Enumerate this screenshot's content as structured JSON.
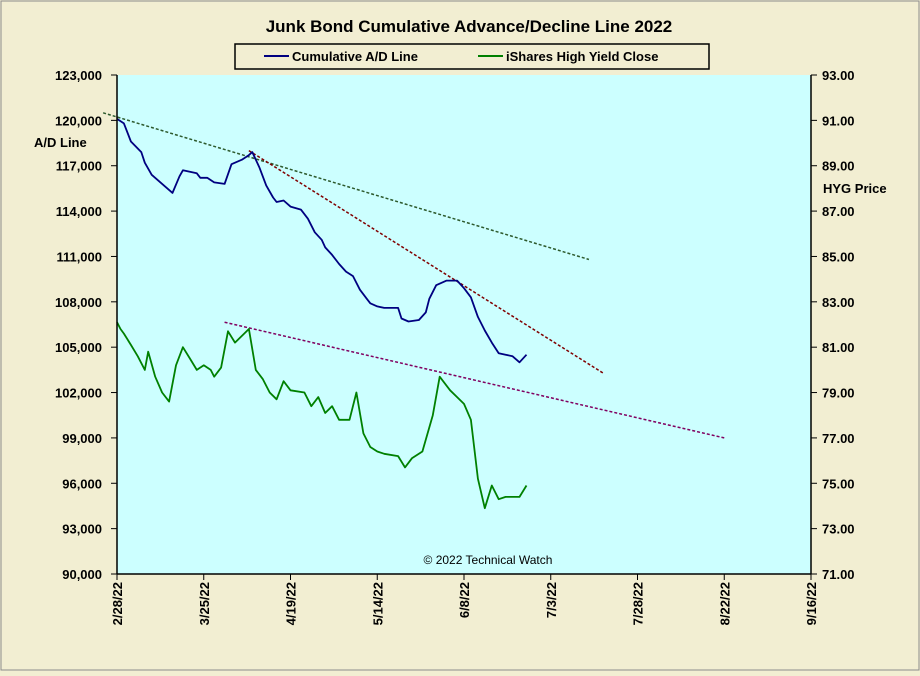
{
  "chart_data": {
    "type": "line",
    "title": "Junk Bond Cumulative  Advance/Decline  Line 2022",
    "copyright": "© 2022 Technical Watch",
    "left_axis": {
      "label": "A/D Line",
      "range": [
        90000,
        123000
      ],
      "ticks": [
        "123,000",
        "120,000",
        "117,000",
        "114,000",
        "111,000",
        "108,000",
        "105,000",
        "102,000",
        "99,000",
        "96,000",
        "93,000",
        "90,000"
      ]
    },
    "right_axis": {
      "label": "HYG Price",
      "range": [
        71,
        93
      ],
      "ticks": [
        "93.00",
        "91.00",
        "89.00",
        "87.00",
        "85.00",
        "83.00",
        "81.00",
        "79.00",
        "77.00",
        "75.00",
        "73.00",
        "71.00"
      ]
    },
    "x_axis": {
      "range": [
        "2022-02-28",
        "2022-09-16"
      ],
      "ticks": [
        "2/28/22",
        "3/25/22",
        "4/19/22",
        "5/14/22",
        "6/8/22",
        "7/3/22",
        "7/28/22",
        "8/22/22",
        "9/16/22"
      ]
    },
    "legend": {
      "placement": "top-center"
    },
    "grid": false,
    "plot_background": "#ccffff",
    "series": [
      {
        "name": "Cumulative A/D Line",
        "axis": "left",
        "color": "#000080",
        "points": [
          [
            "2022-02-28",
            120100
          ],
          [
            "2022-03-02",
            119800
          ],
          [
            "2022-03-04",
            118600
          ],
          [
            "2022-03-07",
            117900
          ],
          [
            "2022-03-08",
            117200
          ],
          [
            "2022-03-10",
            116400
          ],
          [
            "2022-03-14",
            115600
          ],
          [
            "2022-03-16",
            115200
          ],
          [
            "2022-03-18",
            116300
          ],
          [
            "2022-03-19",
            116700
          ],
          [
            "2022-03-23",
            116500
          ],
          [
            "2022-03-24",
            116200
          ],
          [
            "2022-03-26",
            116200
          ],
          [
            "2022-03-28",
            115900
          ],
          [
            "2022-03-31",
            115800
          ],
          [
            "2022-04-02",
            117100
          ],
          [
            "2022-04-05",
            117400
          ],
          [
            "2022-04-07",
            117700
          ],
          [
            "2022-04-08",
            117900
          ],
          [
            "2022-04-10",
            116900
          ],
          [
            "2022-04-12",
            115700
          ],
          [
            "2022-04-14",
            114900
          ],
          [
            "2022-04-15",
            114600
          ],
          [
            "2022-04-17",
            114700
          ],
          [
            "2022-04-19",
            114300
          ],
          [
            "2022-04-22",
            114100
          ],
          [
            "2022-04-24",
            113500
          ],
          [
            "2022-04-26",
            112600
          ],
          [
            "2022-04-28",
            112100
          ],
          [
            "2022-04-29",
            111600
          ],
          [
            "2022-05-01",
            111100
          ],
          [
            "2022-05-03",
            110500
          ],
          [
            "2022-05-05",
            110000
          ],
          [
            "2022-05-07",
            109700
          ],
          [
            "2022-05-09",
            108800
          ],
          [
            "2022-05-11",
            108200
          ],
          [
            "2022-05-12",
            107900
          ],
          [
            "2022-05-14",
            107700
          ],
          [
            "2022-05-16",
            107600
          ],
          [
            "2022-05-20",
            107600
          ],
          [
            "2022-05-21",
            106900
          ],
          [
            "2022-05-23",
            106700
          ],
          [
            "2022-05-26",
            106800
          ],
          [
            "2022-05-28",
            107300
          ],
          [
            "2022-05-29",
            108200
          ],
          [
            "2022-05-31",
            109100
          ],
          [
            "2022-06-03",
            109400
          ],
          [
            "2022-06-06",
            109400
          ],
          [
            "2022-06-08",
            108900
          ],
          [
            "2022-06-10",
            108300
          ],
          [
            "2022-06-12",
            107000
          ],
          [
            "2022-06-14",
            106100
          ],
          [
            "2022-06-16",
            105300
          ],
          [
            "2022-06-18",
            104600
          ],
          [
            "2022-06-20",
            104500
          ],
          [
            "2022-06-22",
            104400
          ],
          [
            "2022-06-24",
            104000
          ],
          [
            "2022-06-26",
            104500
          ]
        ]
      },
      {
        "name": "iShares High Yield Close",
        "axis": "right",
        "color": "#008000",
        "points": [
          [
            "2022-02-28",
            82.1
          ],
          [
            "2022-03-01",
            81.8
          ],
          [
            "2022-03-02",
            81.6
          ],
          [
            "2022-03-04",
            81.1
          ],
          [
            "2022-03-06",
            80.6
          ],
          [
            "2022-03-08",
            80.0
          ],
          [
            "2022-03-09",
            80.8
          ],
          [
            "2022-03-11",
            79.7
          ],
          [
            "2022-03-13",
            79.0
          ],
          [
            "2022-03-15",
            78.6
          ],
          [
            "2022-03-17",
            80.2
          ],
          [
            "2022-03-19",
            81.0
          ],
          [
            "2022-03-21",
            80.5
          ],
          [
            "2022-03-23",
            80.0
          ],
          [
            "2022-03-25",
            80.2
          ],
          [
            "2022-03-27",
            80.0
          ],
          [
            "2022-03-28",
            79.7
          ],
          [
            "2022-03-30",
            80.1
          ],
          [
            "2022-04-01",
            81.7
          ],
          [
            "2022-04-03",
            81.2
          ],
          [
            "2022-04-07",
            81.8
          ],
          [
            "2022-04-09",
            80.0
          ],
          [
            "2022-04-11",
            79.6
          ],
          [
            "2022-04-13",
            79.0
          ],
          [
            "2022-04-15",
            78.7
          ],
          [
            "2022-04-17",
            79.5
          ],
          [
            "2022-04-19",
            79.1
          ],
          [
            "2022-04-23",
            79.0
          ],
          [
            "2022-04-25",
            78.4
          ],
          [
            "2022-04-27",
            78.8
          ],
          [
            "2022-04-29",
            78.1
          ],
          [
            "2022-05-01",
            78.4
          ],
          [
            "2022-05-03",
            77.8
          ],
          [
            "2022-05-06",
            77.8
          ],
          [
            "2022-05-08",
            79.0
          ],
          [
            "2022-05-10",
            77.2
          ],
          [
            "2022-05-12",
            76.6
          ],
          [
            "2022-05-14",
            76.4
          ],
          [
            "2022-05-16",
            76.3
          ],
          [
            "2022-05-20",
            76.2
          ],
          [
            "2022-05-22",
            75.7
          ],
          [
            "2022-05-24",
            76.1
          ],
          [
            "2022-05-27",
            76.4
          ],
          [
            "2022-05-30",
            78.0
          ],
          [
            "2022-06-01",
            79.7
          ],
          [
            "2022-06-04",
            79.1
          ],
          [
            "2022-06-06",
            78.8
          ],
          [
            "2022-06-08",
            78.5
          ],
          [
            "2022-06-10",
            77.8
          ],
          [
            "2022-06-12",
            75.2
          ],
          [
            "2022-06-14",
            73.9
          ],
          [
            "2022-06-16",
            74.9
          ],
          [
            "2022-06-18",
            74.3
          ],
          [
            "2022-06-20",
            74.4
          ],
          [
            "2022-06-24",
            74.4
          ],
          [
            "2022-06-26",
            74.9
          ]
        ]
      }
    ],
    "trendlines": [
      {
        "axis": "left",
        "color": "#2d5a2d",
        "from": [
          "2022-02-24",
          120500
        ],
        "to": [
          "2022-07-14",
          110800
        ]
      },
      {
        "axis": "left",
        "color": "#800000",
        "from": [
          "2022-04-07",
          118000
        ],
        "to": [
          "2022-07-18",
          103300
        ]
      },
      {
        "axis": "right",
        "color": "#800060",
        "from": [
          "2022-03-31",
          82.1
        ],
        "to": [
          "2022-08-22",
          77.0
        ]
      }
    ]
  }
}
